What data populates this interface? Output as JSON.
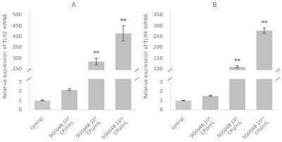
{
  "chart_data": [
    {
      "type": "bar",
      "title": "A",
      "y_label": "Relative expression of TLR2 mRNA",
      "categories": [
        "control",
        "SQ0048 10⁸\nCFU/mL",
        "SQ0048 10⁹\nCFU/mL",
        "SQ0048 10¹⁰\nCFU/mL"
      ],
      "values": [
        1.0,
        2.15,
        285.0,
        415.0
      ],
      "errors": [
        0.05,
        0.1,
        15.0,
        35.0
      ],
      "colors": [
        "#c8c8c8",
        "#c0c0c0",
        "#c0c0c0",
        "#c0c0c0"
      ],
      "ylim": [
        [
          0,
          3.35
        ],
        [
          245,
          515
        ]
      ],
      "yticks": [
        [
          0,
          1,
          2,
          3
        ],
        [
          250,
          300,
          350,
          400,
          450,
          500
        ]
      ],
      "annotations": [
        {
          "category": "SQ0048 10⁹\nCFU/mL",
          "text": "**"
        },
        {
          "category": "SQ0048 10¹⁰\nCFU/mL",
          "text": "**"
        }
      ],
      "grid": false
    },
    {
      "type": "bar",
      "title": "B",
      "y_label": "Relative expression of TLR4 mRNA",
      "categories": [
        "control",
        "SQ0048 10⁸\nCFU/mL",
        "SQ0048 10⁹\nCFU/mL",
        "SQ0048 10¹⁰\nCFU/mL"
      ],
      "values": [
        1.0,
        1.5,
        110.0,
        278.0
      ],
      "errors": [
        0.04,
        0.07,
        5.0,
        12.0
      ],
      "colors": [
        "#c8c8c8",
        "#c0c0c0",
        "#c0c0c0",
        "#c0c0c0"
      ],
      "ylim": [
        [
          0,
          3.35
        ],
        [
          95,
          365
        ]
      ],
      "yticks": [
        [
          0,
          1,
          2,
          3
        ],
        [
          100,
          150,
          200,
          250,
          300,
          350
        ]
      ],
      "annotations": [
        {
          "category": "SQ0048 10⁹\nCFU/mL",
          "text": "**"
        },
        {
          "category": "SQ0048 10¹⁰\nCFU/mL",
          "text": "**"
        }
      ],
      "grid": false
    }
  ]
}
